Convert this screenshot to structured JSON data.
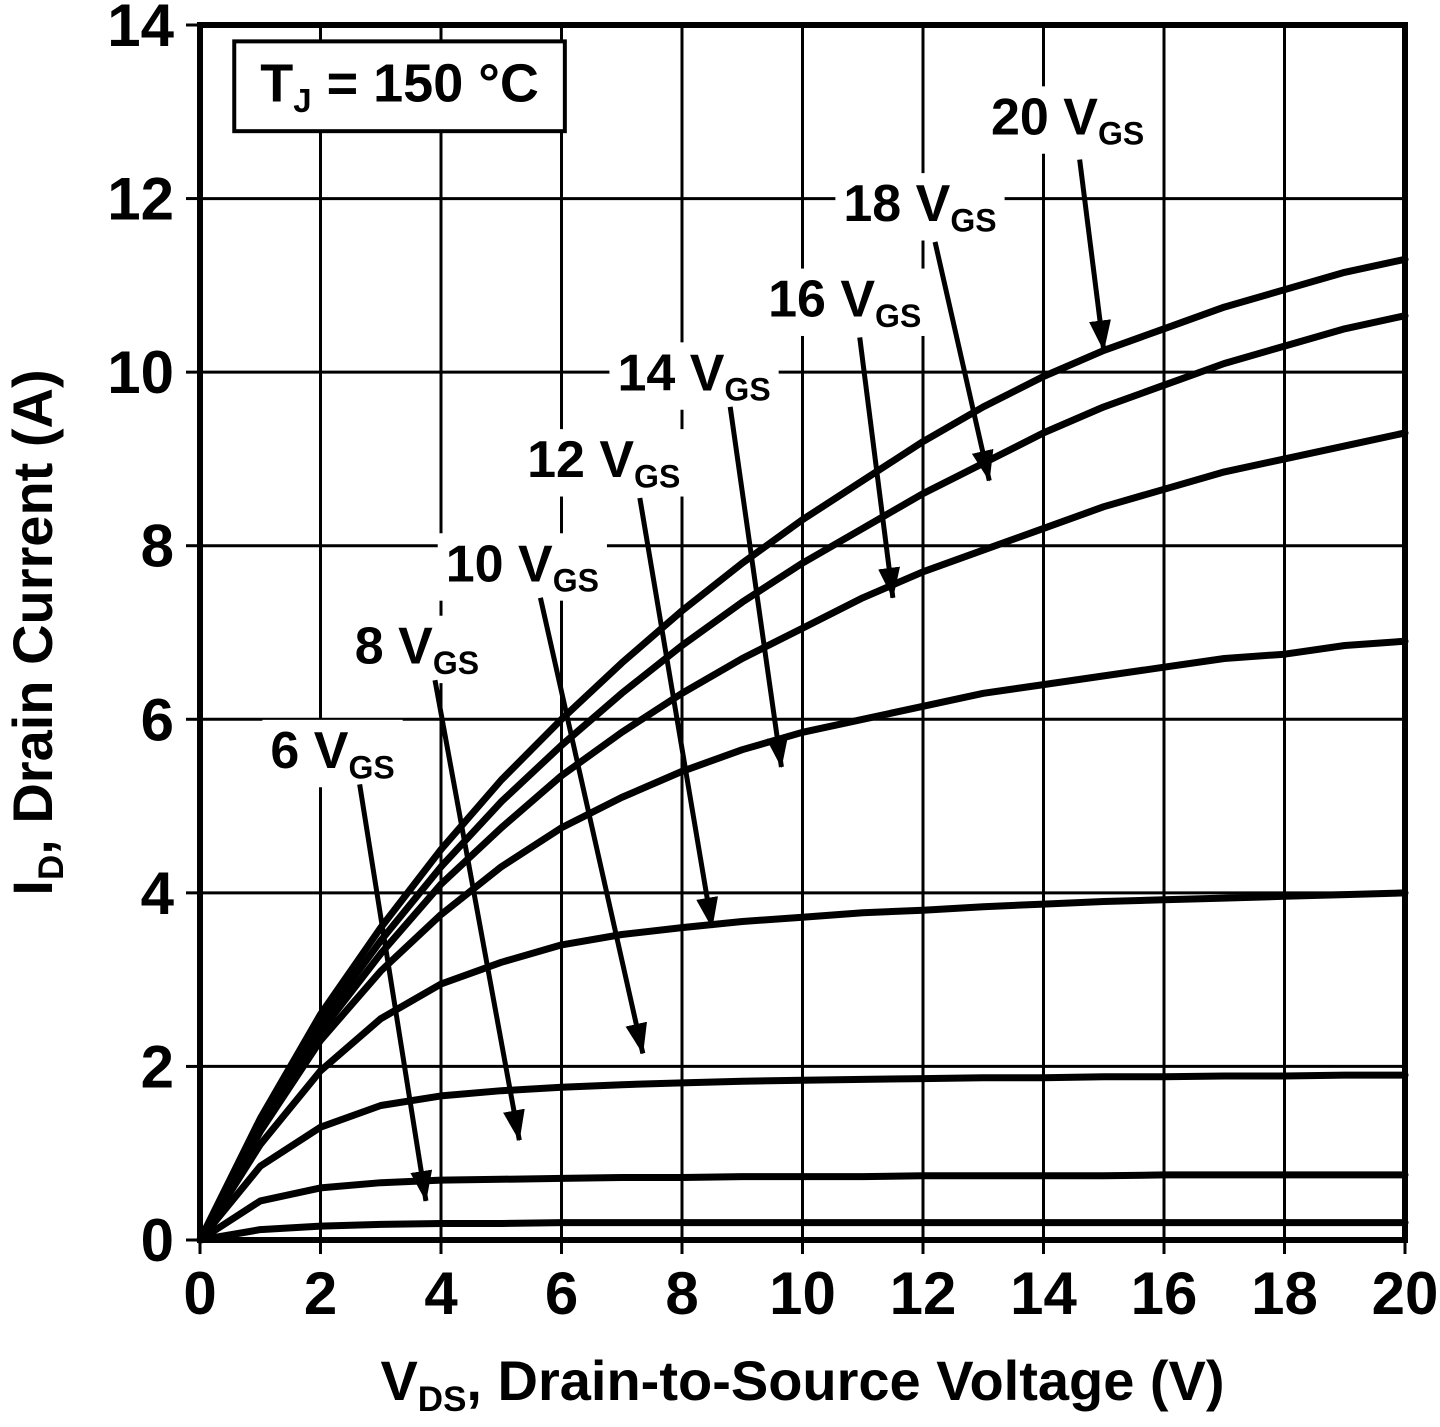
{
  "chart_data": {
    "type": "line",
    "title": "",
    "xlabel": "V_{DS}, Drain-to-Source Voltage (V)",
    "ylabel": "I_{D}, Drain Current (A)",
    "xlim": [
      0,
      20
    ],
    "ylim": [
      0,
      14
    ],
    "xticks": [
      0,
      2,
      4,
      6,
      8,
      10,
      12,
      14,
      16,
      18,
      20
    ],
    "yticks": [
      0,
      2,
      4,
      6,
      8,
      10,
      12,
      14
    ],
    "grid": true,
    "legend": "none",
    "line_color": "#000000",
    "background": "#ffffff",
    "condition_box": {
      "text": "T_{J} = 150 °C",
      "x": 1.0,
      "y": 13.12
    },
    "x": [
      0,
      1,
      2,
      3,
      4,
      5,
      6,
      7,
      8,
      9,
      10,
      11,
      12,
      13,
      14,
      15,
      16,
      17,
      18,
      19,
      20
    ],
    "series": [
      {
        "name": "20 V_{GS}",
        "values": [
          0,
          1.4,
          2.6,
          3.6,
          4.5,
          5.3,
          6.0,
          6.65,
          7.25,
          7.8,
          8.3,
          8.75,
          9.2,
          9.6,
          9.95,
          10.25,
          10.5,
          10.75,
          10.95,
          11.15,
          11.3
        ]
      },
      {
        "name": "18 V_{GS}",
        "values": [
          0,
          1.35,
          2.5,
          3.45,
          4.3,
          5.05,
          5.7,
          6.3,
          6.85,
          7.35,
          7.8,
          8.2,
          8.6,
          8.95,
          9.3,
          9.6,
          9.85,
          10.1,
          10.3,
          10.5,
          10.65
        ]
      },
      {
        "name": "16 V_{GS}",
        "values": [
          0,
          1.3,
          2.4,
          3.3,
          4.1,
          4.75,
          5.35,
          5.85,
          6.3,
          6.7,
          7.05,
          7.4,
          7.7,
          7.95,
          8.2,
          8.45,
          8.65,
          8.85,
          9.0,
          9.15,
          9.3
        ]
      },
      {
        "name": "14 V_{GS}",
        "values": [
          0,
          1.25,
          2.3,
          3.1,
          3.75,
          4.3,
          4.75,
          5.1,
          5.4,
          5.65,
          5.85,
          6.0,
          6.15,
          6.3,
          6.4,
          6.5,
          6.6,
          6.7,
          6.75,
          6.85,
          6.9
        ]
      },
      {
        "name": "12 V_{GS}",
        "values": [
          0,
          1.1,
          1.95,
          2.55,
          2.95,
          3.2,
          3.4,
          3.52,
          3.6,
          3.67,
          3.72,
          3.77,
          3.8,
          3.84,
          3.87,
          3.9,
          3.92,
          3.94,
          3.96,
          3.98,
          4.0
        ]
      },
      {
        "name": "10 V_{GS}",
        "values": [
          0,
          0.85,
          1.3,
          1.55,
          1.66,
          1.72,
          1.76,
          1.79,
          1.81,
          1.83,
          1.84,
          1.85,
          1.86,
          1.87,
          1.87,
          1.88,
          1.88,
          1.89,
          1.89,
          1.9,
          1.9
        ]
      },
      {
        "name": "8 V_{GS}",
        "values": [
          0,
          0.45,
          0.6,
          0.66,
          0.69,
          0.7,
          0.71,
          0.72,
          0.72,
          0.73,
          0.73,
          0.73,
          0.74,
          0.74,
          0.74,
          0.74,
          0.75,
          0.75,
          0.75,
          0.75,
          0.75
        ]
      },
      {
        "name": "6 V_{GS}",
        "values": [
          0,
          0.12,
          0.16,
          0.18,
          0.19,
          0.19,
          0.2,
          0.2,
          0.2,
          0.2,
          0.2,
          0.2,
          0.2,
          0.2,
          0.2,
          0.2,
          0.2,
          0.2,
          0.2,
          0.2,
          0.2
        ]
      }
    ],
    "curve_labels": [
      {
        "text": "20 V_{GS}",
        "x": 14.4,
        "y": 12.95,
        "arrow": [
          [
            14.6,
            12.45
          ],
          [
            15.0,
            10.25
          ]
        ]
      },
      {
        "text": "18 V_{GS}",
        "x": 11.95,
        "y": 11.95,
        "arrow": [
          [
            12.2,
            11.5
          ],
          [
            13.1,
            8.75
          ]
        ]
      },
      {
        "text": "16 V_{GS}",
        "x": 10.7,
        "y": 10.85,
        "arrow": [
          [
            10.95,
            10.4
          ],
          [
            11.5,
            7.4
          ]
        ]
      },
      {
        "text": "14 V_{GS}",
        "x": 8.2,
        "y": 10.0,
        "arrow": [
          [
            8.8,
            9.6
          ],
          [
            9.65,
            5.45
          ]
        ]
      },
      {
        "text": "12 V_{GS}",
        "x": 6.7,
        "y": 9.0,
        "arrow": [
          [
            7.3,
            8.55
          ],
          [
            8.5,
            3.6
          ]
        ]
      },
      {
        "text": "10 V_{GS}",
        "x": 5.35,
        "y": 7.8,
        "arrow": [
          [
            5.65,
            7.4
          ],
          [
            7.35,
            2.15
          ]
        ]
      },
      {
        "text": "8 V_{GS}",
        "x": 3.6,
        "y": 6.85,
        "arrow": [
          [
            3.9,
            6.45
          ],
          [
            5.3,
            1.15
          ]
        ]
      },
      {
        "text": "6 V_{GS}",
        "x": 2.2,
        "y": 5.65,
        "arrow": [
          [
            2.65,
            5.25
          ],
          [
            3.75,
            0.45
          ]
        ]
      }
    ]
  }
}
